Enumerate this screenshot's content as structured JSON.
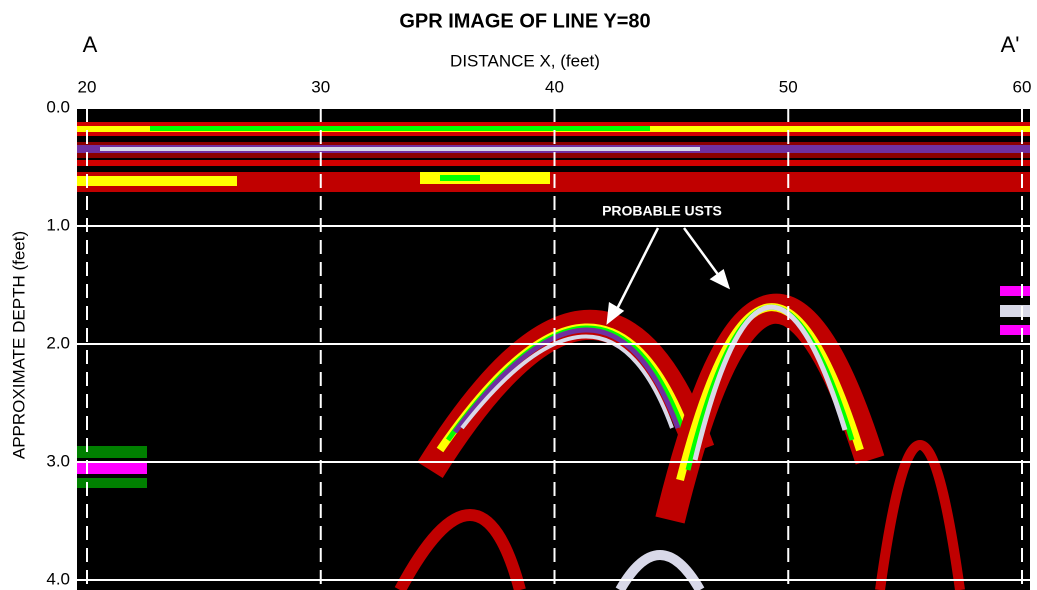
{
  "chart_data": {
    "type": "image",
    "title": "GPR IMAGE OF LINE Y=80",
    "xlabel": "DISTANCE X, (feet)",
    "ylabel": "APPROXIMATE DEPTH (feet)",
    "labels": [
      "A",
      "A'"
    ],
    "annotation": "PROBABLE USTS",
    "xlim": [
      20,
      60
    ],
    "xticks": [
      20,
      30,
      40,
      50,
      60
    ],
    "ylim": [
      0,
      4
    ],
    "y_inverted": true,
    "yticks": [
      {
        "value": 0,
        "label": "0.0"
      },
      {
        "value": 1,
        "label": "1.0"
      },
      {
        "value": 2,
        "label": "2.0"
      },
      {
        "value": 3,
        "label": "3.0"
      },
      {
        "value": 4,
        "label": "4.0"
      }
    ],
    "grid": true
  }
}
